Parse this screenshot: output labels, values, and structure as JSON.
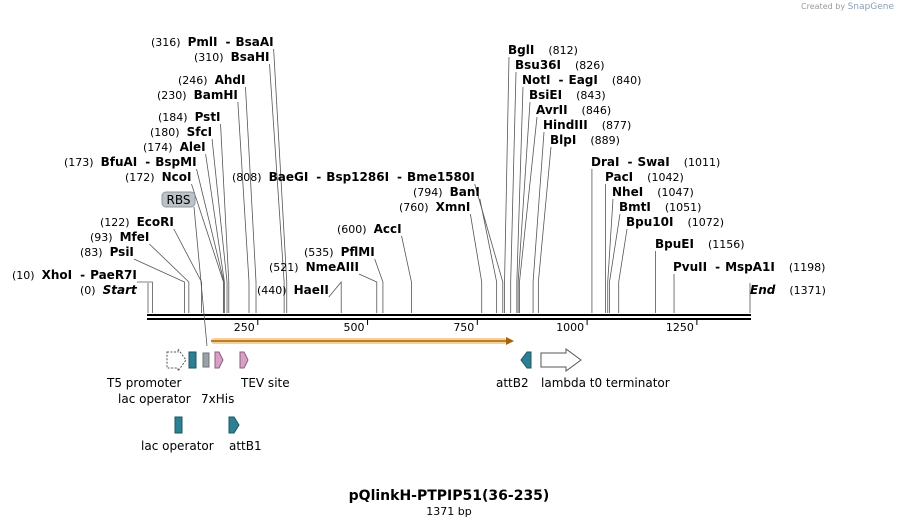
{
  "credit": {
    "prefix": "Created by",
    "brand": "SnapGene"
  },
  "title": "pQlinkH-PTPIP51(36-235)",
  "length_label": "1371 bp",
  "sequence_length": 1371,
  "axis": {
    "ticks": [
      250,
      500,
      750,
      1000,
      1250
    ]
  },
  "colors": {
    "backbone": "#000000",
    "orf": "#f2a73b",
    "teal": "#2d7f94",
    "pink": "#d9a0c5",
    "gray": "#9aa2a8",
    "white": "#ffffff"
  },
  "sites": [
    {
      "pos": 10,
      "pos_label": "(10)",
      "names": [
        "XhoI",
        "PaeR7I"
      ],
      "italic": false
    },
    {
      "pos": 0,
      "pos_label": "(0)",
      "names": [
        "Start"
      ],
      "italic": true
    },
    {
      "pos": 83,
      "pos_label": "(83)",
      "names": [
        "PsiI"
      ],
      "italic": false
    },
    {
      "pos": 93,
      "pos_label": "(93)",
      "names": [
        "MfeI"
      ],
      "italic": false
    },
    {
      "pos": 122,
      "pos_label": "(122)",
      "names": [
        "EcoRI"
      ],
      "italic": false
    },
    {
      "pos": 172,
      "pos_label": "(172)",
      "names": [
        "NcoI"
      ],
      "italic": false
    },
    {
      "pos": 173,
      "pos_label": "(173)",
      "names": [
        "BfuAI",
        "BspMI"
      ],
      "italic": false
    },
    {
      "pos": 174,
      "pos_label": "(174)",
      "names": [
        "AleI"
      ],
      "italic": false
    },
    {
      "pos": 180,
      "pos_label": "(180)",
      "names": [
        "SfcI"
      ],
      "italic": false
    },
    {
      "pos": 184,
      "pos_label": "(184)",
      "names": [
        "PstI"
      ],
      "italic": false
    },
    {
      "pos": 230,
      "pos_label": "(230)",
      "names": [
        "BamHI"
      ],
      "italic": false
    },
    {
      "pos": 246,
      "pos_label": "(246)",
      "names": [
        "AhdI"
      ],
      "italic": false
    },
    {
      "pos": 310,
      "pos_label": "(310)",
      "names": [
        "BsaHI"
      ],
      "italic": false
    },
    {
      "pos": 316,
      "pos_label": "(316)",
      "names": [
        "PmlI",
        "BsaAI"
      ],
      "italic": false
    },
    {
      "pos": 440,
      "pos_label": "(440)",
      "names": [
        "HaeII"
      ],
      "italic": false
    },
    {
      "pos": 521,
      "pos_label": "(521)",
      "names": [
        "NmeAIII"
      ],
      "italic": false
    },
    {
      "pos": 535,
      "pos_label": "(535)",
      "names": [
        "PflMI"
      ],
      "italic": false
    },
    {
      "pos": 600,
      "pos_label": "(600)",
      "names": [
        "AccI"
      ],
      "italic": false
    },
    {
      "pos": 808,
      "pos_label": "(808)",
      "names": [
        "BaeGI",
        "Bsp1286I",
        "Bme1580I"
      ],
      "italic": false
    },
    {
      "pos": 760,
      "pos_label": "(760)",
      "names": [
        "XmnI"
      ],
      "italic": false
    },
    {
      "pos": 794,
      "pos_label": "(794)",
      "names": [
        "BanI"
      ],
      "italic": false
    },
    {
      "pos": 812,
      "pos_label": "(812)",
      "names": [
        "BglI"
      ],
      "italic": false
    },
    {
      "pos": 826,
      "pos_label": "(826)",
      "names": [
        "Bsu36I"
      ],
      "italic": false
    },
    {
      "pos": 840,
      "pos_label": "(840)",
      "names": [
        "NotI",
        "EagI"
      ],
      "italic": false
    },
    {
      "pos": 843,
      "pos_label": "(843)",
      "names": [
        "BsiEI"
      ],
      "italic": false
    },
    {
      "pos": 846,
      "pos_label": "(846)",
      "names": [
        "AvrII"
      ],
      "italic": false
    },
    {
      "pos": 877,
      "pos_label": "(877)",
      "names": [
        "HindIII"
      ],
      "italic": false
    },
    {
      "pos": 889,
      "pos_label": "(889)",
      "names": [
        "BlpI"
      ],
      "italic": false
    },
    {
      "pos": 1011,
      "pos_label": "(1011)",
      "names": [
        "DraI",
        "SwaI"
      ],
      "italic": false
    },
    {
      "pos": 1042,
      "pos_label": "(1042)",
      "names": [
        "PacI"
      ],
      "italic": false
    },
    {
      "pos": 1047,
      "pos_label": "(1047)",
      "names": [
        "NheI"
      ],
      "italic": false
    },
    {
      "pos": 1051,
      "pos_label": "(1051)",
      "names": [
        "BmtI"
      ],
      "italic": false
    },
    {
      "pos": 1072,
      "pos_label": "(1072)",
      "names": [
        "Bpu10I"
      ],
      "italic": false
    },
    {
      "pos": 1156,
      "pos_label": "(1156)",
      "names": [
        "BpuEI"
      ],
      "italic": false
    },
    {
      "pos": 1198,
      "pos_label": "(1198)",
      "names": [
        "PvuII",
        "MspA1I"
      ],
      "italic": false
    },
    {
      "pos": 1371,
      "pos_label": "(1371)",
      "names": [
        "End"
      ],
      "italic": true
    }
  ],
  "features": {
    "rbs": "RBS",
    "t5_promoter": "T5 promoter",
    "lac_operator": "lac operator",
    "his_tag": "7xHis",
    "tev_site": "TEV site",
    "attB2": "attB2",
    "lambda_t0": "lambda t0 terminator",
    "lac_operator_2": "lac operator",
    "attB1": "attB1"
  }
}
